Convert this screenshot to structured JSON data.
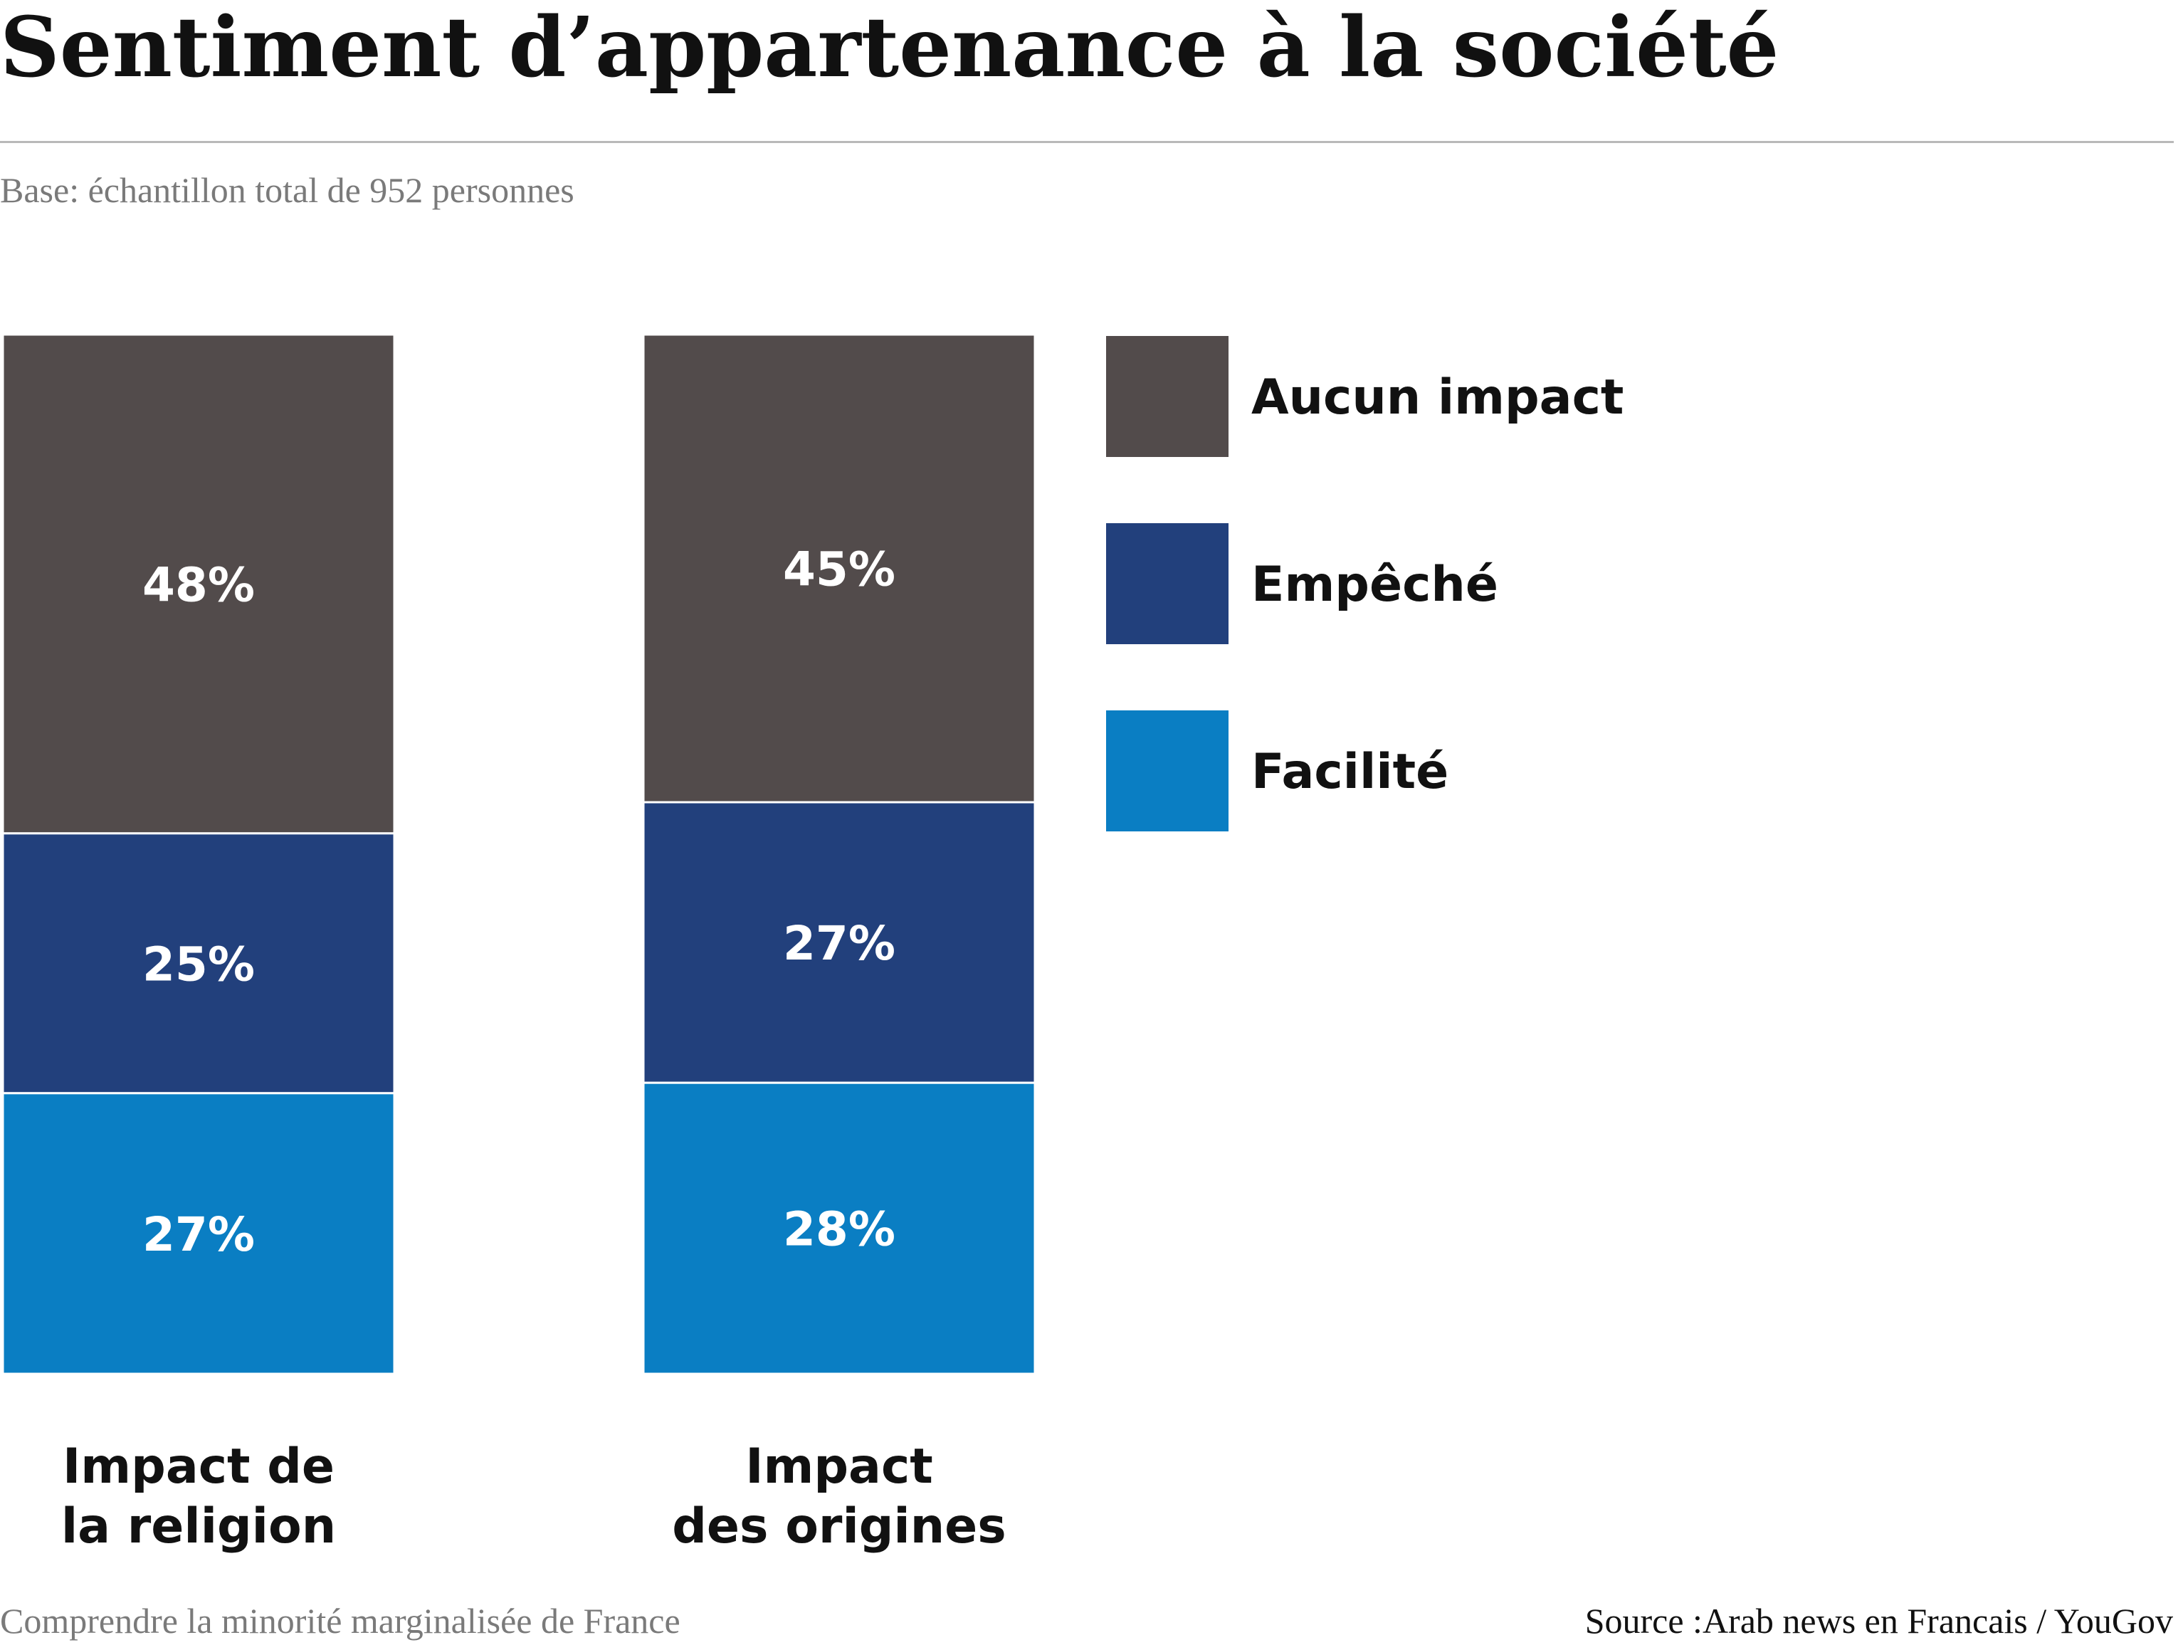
{
  "header": {
    "title": "Sentiment d’appartenance à la société",
    "subtitle": "Base: échantillon total de 952 personnes"
  },
  "footer": {
    "note": "Comprendre la minorité marginalisée de France",
    "source": "Source :Arab news en Francais / YouGov"
  },
  "colors": {
    "aucun_impact": "#524b4b",
    "empeche": "#22407c",
    "facilite": "#0a7ec3",
    "label_text": "#ffffff",
    "legend_text": "#111111"
  },
  "chart_data": {
    "type": "bar",
    "stacked": true,
    "title": "",
    "xlabel": "",
    "ylabel": "",
    "ylim": [
      0,
      100
    ],
    "grid": false,
    "legend_position": "right",
    "categories": [
      [
        "Impact de",
        "la religion"
      ],
      [
        "Impact",
        "des origines"
      ]
    ],
    "series": [
      {
        "name": "Aucun impact",
        "values": [
          48,
          45
        ],
        "labels": [
          "48%",
          "45%"
        ],
        "color_key": "aucun_impact"
      },
      {
        "name": "Empêché",
        "values": [
          25,
          27
        ],
        "labels": [
          "25%",
          "27%"
        ],
        "color_key": "empeche"
      },
      {
        "name": "Facilité",
        "values": [
          27,
          28
        ],
        "labels": [
          "27%",
          "28%"
        ],
        "color_key": "facilite"
      }
    ]
  }
}
